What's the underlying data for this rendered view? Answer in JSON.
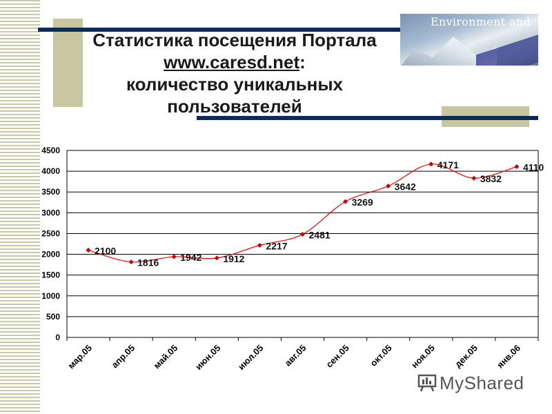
{
  "slide": {
    "title_line1": "Статистика посещения Портала",
    "title_url": "www.caresd.net",
    "title_colon": ":",
    "title_line3": "количество уникальных",
    "title_line4": "пользователей",
    "image_caption": "Environment and",
    "watermark": "MyShared"
  },
  "colors": {
    "line": "#ff0000",
    "marker": "#cc0000",
    "grid": "#000000",
    "bars": "#0e2a59",
    "olive": "#c7c6a0"
  },
  "chart_data": {
    "type": "line",
    "categories": [
      "мар.05",
      "апр.05",
      "май.05",
      "июн.05",
      "июл.05",
      "авг.05",
      "сен.05",
      "окт.05",
      "ноя.05",
      "дек.05",
      "янв.06"
    ],
    "series": [
      {
        "values": [
          2100,
          1816,
          1942,
          1912,
          2217,
          2481,
          3269,
          3642,
          4171,
          3832,
          4110
        ]
      }
    ],
    "data_labels": [
      "2100",
      "1816",
      "1942",
      "1912",
      "2217",
      "2481",
      "3269",
      "3642",
      "4171",
      "3832",
      "4110"
    ],
    "ylim": [
      0,
      4500
    ],
    "yticks": [
      0,
      500,
      1000,
      1500,
      2000,
      2500,
      3000,
      3500,
      4000,
      4500
    ],
    "grid": true,
    "legend": "none",
    "smooth": true
  }
}
